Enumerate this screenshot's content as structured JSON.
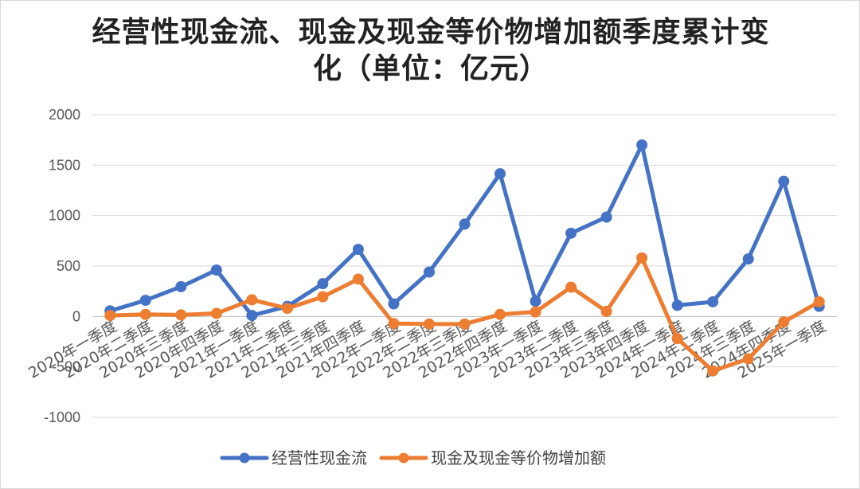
{
  "chart_data": {
    "type": "line",
    "title": "经营性现金流、现金及现金等价物增加额季度累计变化（单位：亿元）",
    "categories": [
      "2020年一季度",
      "2020年二季度",
      "2020年三季度",
      "2020年四季度",
      "2021年一季度",
      "2021年二季度",
      "2021年三季度",
      "2021年四季度",
      "2022年一季度",
      "2022年二季度",
      "2022年三季度",
      "2022年四季度",
      "2023年一季度",
      "2023年二季度",
      "2023年三季度",
      "2023年四季度",
      "2024年一季度",
      "2024年二季度",
      "2024年三季度",
      "2024年四季度",
      "2025年一季度"
    ],
    "series": [
      {
        "name": "经营性现金流",
        "color": "#4472C4",
        "values": [
          55,
          160,
          295,
          460,
          10,
          100,
          325,
          665,
          125,
          440,
          915,
          1415,
          150,
          825,
          985,
          1700,
          110,
          145,
          570,
          1340,
          100
        ]
      },
      {
        "name": "现金及现金等价物增加额",
        "color": "#ED7D31",
        "values": [
          10,
          20,
          15,
          30,
          165,
          80,
          195,
          370,
          -70,
          -75,
          -75,
          20,
          45,
          290,
          50,
          580,
          -220,
          -540,
          -420,
          -55,
          145
        ]
      }
    ],
    "yticks": [
      2000,
      1500,
      1000,
      500,
      0,
      -500,
      -1000
    ],
    "ylim": [
      -1000,
      2000
    ],
    "grid": true,
    "legend_position": "bottom"
  }
}
